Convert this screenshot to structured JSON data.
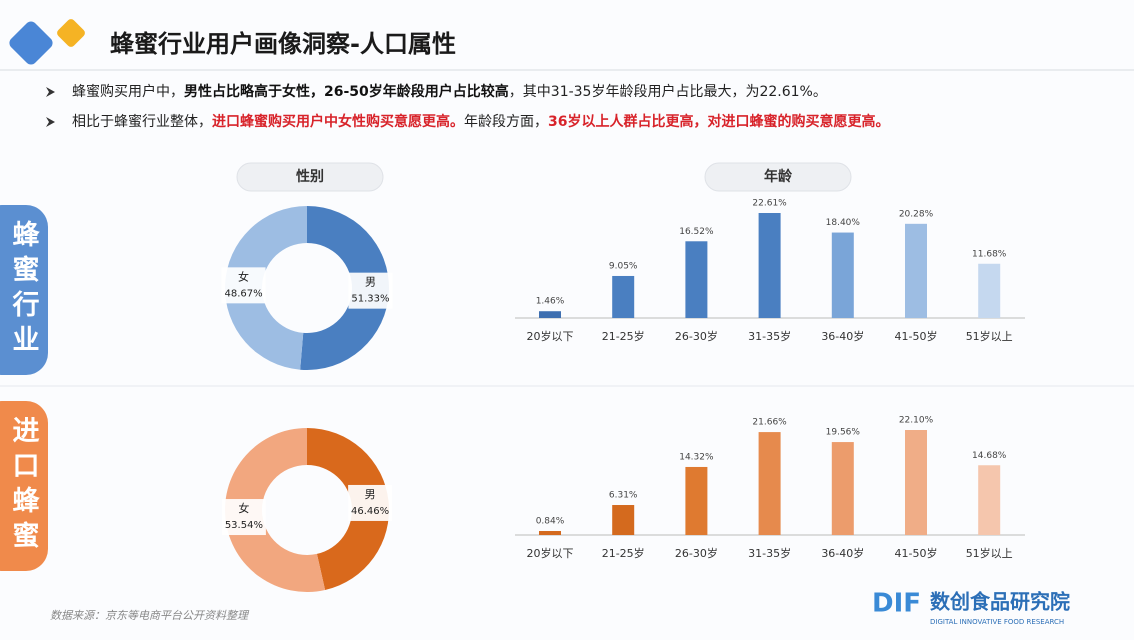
{
  "header": {
    "title": "蜂蜜行业用户画像洞察-人口属性"
  },
  "bullets": [
    [
      {
        "text": "蜂蜜购买用户中，",
        "style": "normal"
      },
      {
        "text": "男性占比略高于女性，26-50岁年龄段用户占比较高",
        "style": "bold"
      },
      {
        "text": "，其中31-35岁年龄段用户占比最大，为22.61%。",
        "style": "normal"
      }
    ],
    [
      {
        "text": "相比于蜂蜜行业整体，",
        "style": "normal"
      },
      {
        "text": "进口蜂蜜购买用户中女性购买意愿更高。",
        "style": "red"
      },
      {
        "text": "年龄段方面，",
        "style": "normal"
      },
      {
        "text": "36岁以上人群占比更高，对进口蜂蜜的购买意愿更高。",
        "style": "red"
      }
    ]
  ],
  "sections": [
    {
      "label": "蜂蜜行业",
      "color": "#5b8fd1"
    },
    {
      "label": "进口蜂蜜",
      "color": "#f08a4b"
    }
  ],
  "panels": [
    "性别",
    "年龄"
  ],
  "chart_data": [
    {
      "type": "pie",
      "categories": [
        "男",
        "女"
      ],
      "values": [
        51.33,
        48.67
      ],
      "value_labels": [
        "51.33%",
        "48.67%"
      ],
      "colors": [
        "#4a7fc1",
        "#9dbde3"
      ]
    },
    {
      "type": "bar",
      "categories": [
        "20岁以下",
        "21-25岁",
        "26-30岁",
        "31-35岁",
        "36-40岁",
        "41-50岁",
        "51岁以上"
      ],
      "values": [
        1.46,
        9.05,
        16.52,
        22.61,
        18.4,
        20.28,
        11.68
      ],
      "value_labels": [
        "1.46%",
        "9.05%",
        "16.52%",
        "22.61%",
        "18.40%",
        "20.28%",
        "11.68%"
      ],
      "colors": [
        "#3e6fb0",
        "#4a7fc1",
        "#4a7fc1",
        "#4a7fc1",
        "#7aa5d8",
        "#9dbde3",
        "#c5d8ef"
      ]
    },
    {
      "type": "pie",
      "categories": [
        "男",
        "女"
      ],
      "values": [
        46.46,
        53.54
      ],
      "value_labels": [
        "46.46%",
        "53.54%"
      ],
      "colors": [
        "#d9691c",
        "#f2a77f"
      ]
    },
    {
      "type": "bar",
      "categories": [
        "20岁以下",
        "21-25岁",
        "26-30岁",
        "31-35岁",
        "36-40岁",
        "41-50岁",
        "51岁以上"
      ],
      "values": [
        0.84,
        6.31,
        14.32,
        21.66,
        19.56,
        22.1,
        14.68
      ],
      "value_labels": [
        "0.84%",
        "6.31%",
        "14.32%",
        "21.66%",
        "19.56%",
        "22.10%",
        "14.68%"
      ],
      "colors": [
        "#d46a1e",
        "#d46a1e",
        "#df7a30",
        "#e68a4d",
        "#ec9c6c",
        "#f0ad87",
        "#f5c6ad"
      ]
    }
  ],
  "footer": {
    "source": "数据来源：京东等电商平台公开资料整理",
    "logo": "DIF",
    "brand": "数创食品研究院",
    "brand_en": "DIGITAL INNOVATIVE FOOD RESEARCH"
  }
}
